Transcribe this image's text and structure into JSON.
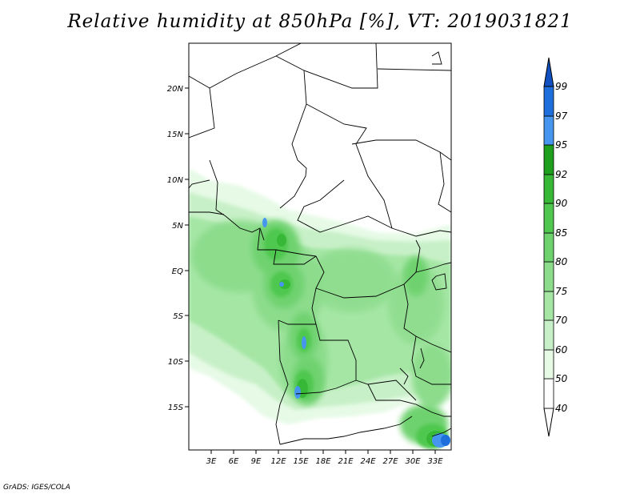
{
  "title": "Relative humidity at 850hPa [%], VT: 2019031821",
  "credit": "GrADS: IGES/COLA",
  "map": {
    "lon_labels": [
      "3E",
      "6E",
      "9E",
      "12E",
      "15E",
      "18E",
      "21E",
      "24E",
      "27E",
      "30E",
      "33E"
    ],
    "lat_labels": [
      "20N",
      "15N",
      "10N",
      "5N",
      "EQ",
      "5S",
      "10S",
      "15S"
    ]
  },
  "colorbar": {
    "levels": [
      "40",
      "50",
      "60",
      "70",
      "75",
      "80",
      "85",
      "90",
      "92",
      "95",
      "97",
      "99"
    ],
    "colors": [
      "#ffffff",
      "#e6fae6",
      "#c8f0c8",
      "#a5e6a5",
      "#8cdc8c",
      "#6ed26e",
      "#50c850",
      "#37b937",
      "#1ea01e",
      "#0f8c0f",
      "#4696f0",
      "#1e6edc",
      "#1050c0"
    ]
  }
}
